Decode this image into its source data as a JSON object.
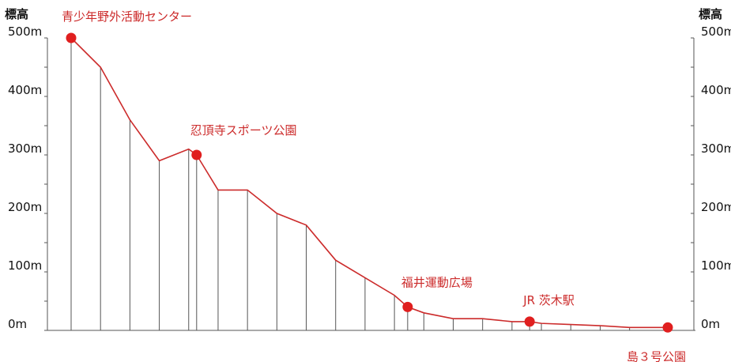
{
  "chart_data": {
    "type": "line",
    "title": "",
    "ylabel_left": "標高",
    "ylabel_right": "標高",
    "ylim": [
      0,
      500
    ],
    "y_ticks": [
      {
        "value": 0,
        "label": "0m"
      },
      {
        "value": 100,
        "label": "100m"
      },
      {
        "value": 200,
        "label": "200m"
      },
      {
        "value": 300,
        "label": "300m"
      },
      {
        "value": 400,
        "label": "400m"
      },
      {
        "value": 500,
        "label": "500m"
      }
    ],
    "minor_tick_step": 50,
    "line_color": "#cc2b2b",
    "marker_color": "#e01f1f",
    "profile": [
      {
        "x": 0,
        "y": 500
      },
      {
        "x": 1,
        "y": 450
      },
      {
        "x": 2,
        "y": 360
      },
      {
        "x": 3,
        "y": 290
      },
      {
        "x": 4,
        "y": 310
      },
      {
        "x": 4.27,
        "y": 300
      },
      {
        "x": 5,
        "y": 240
      },
      {
        "x": 6,
        "y": 240
      },
      {
        "x": 7,
        "y": 200
      },
      {
        "x": 8,
        "y": 180
      },
      {
        "x": 9,
        "y": 120
      },
      {
        "x": 10,
        "y": 90
      },
      {
        "x": 11,
        "y": 60
      },
      {
        "x": 11.45,
        "y": 40
      },
      {
        "x": 12,
        "y": 30
      },
      {
        "x": 13,
        "y": 20
      },
      {
        "x": 14,
        "y": 20
      },
      {
        "x": 15,
        "y": 15
      },
      {
        "x": 15.6,
        "y": 15
      },
      {
        "x": 16,
        "y": 12
      },
      {
        "x": 17,
        "y": 10
      },
      {
        "x": 18,
        "y": 8
      },
      {
        "x": 19,
        "y": 5
      },
      {
        "x": 20.3,
        "y": 5
      }
    ],
    "verticals_x": [
      0,
      1,
      2,
      3,
      4,
      4.27,
      5,
      6,
      7,
      8,
      9,
      10,
      11,
      11.45,
      12,
      13,
      14,
      15,
      15.6,
      16,
      17,
      18,
      19,
      20.3
    ],
    "x_range": [
      0,
      20.3
    ],
    "landmarks": [
      {
        "name": "青少年野外活動センター",
        "x": 0,
        "y": 500
      },
      {
        "name": "忍頂寺スポーツ公園",
        "x": 4.27,
        "y": 300
      },
      {
        "name": "福井運動広場",
        "x": 11.45,
        "y": 40
      },
      {
        "name": "JR 茨木駅",
        "x": 15.6,
        "y": 15
      },
      {
        "name": "島３号公園",
        "x": 20.3,
        "y": 5
      }
    ]
  }
}
